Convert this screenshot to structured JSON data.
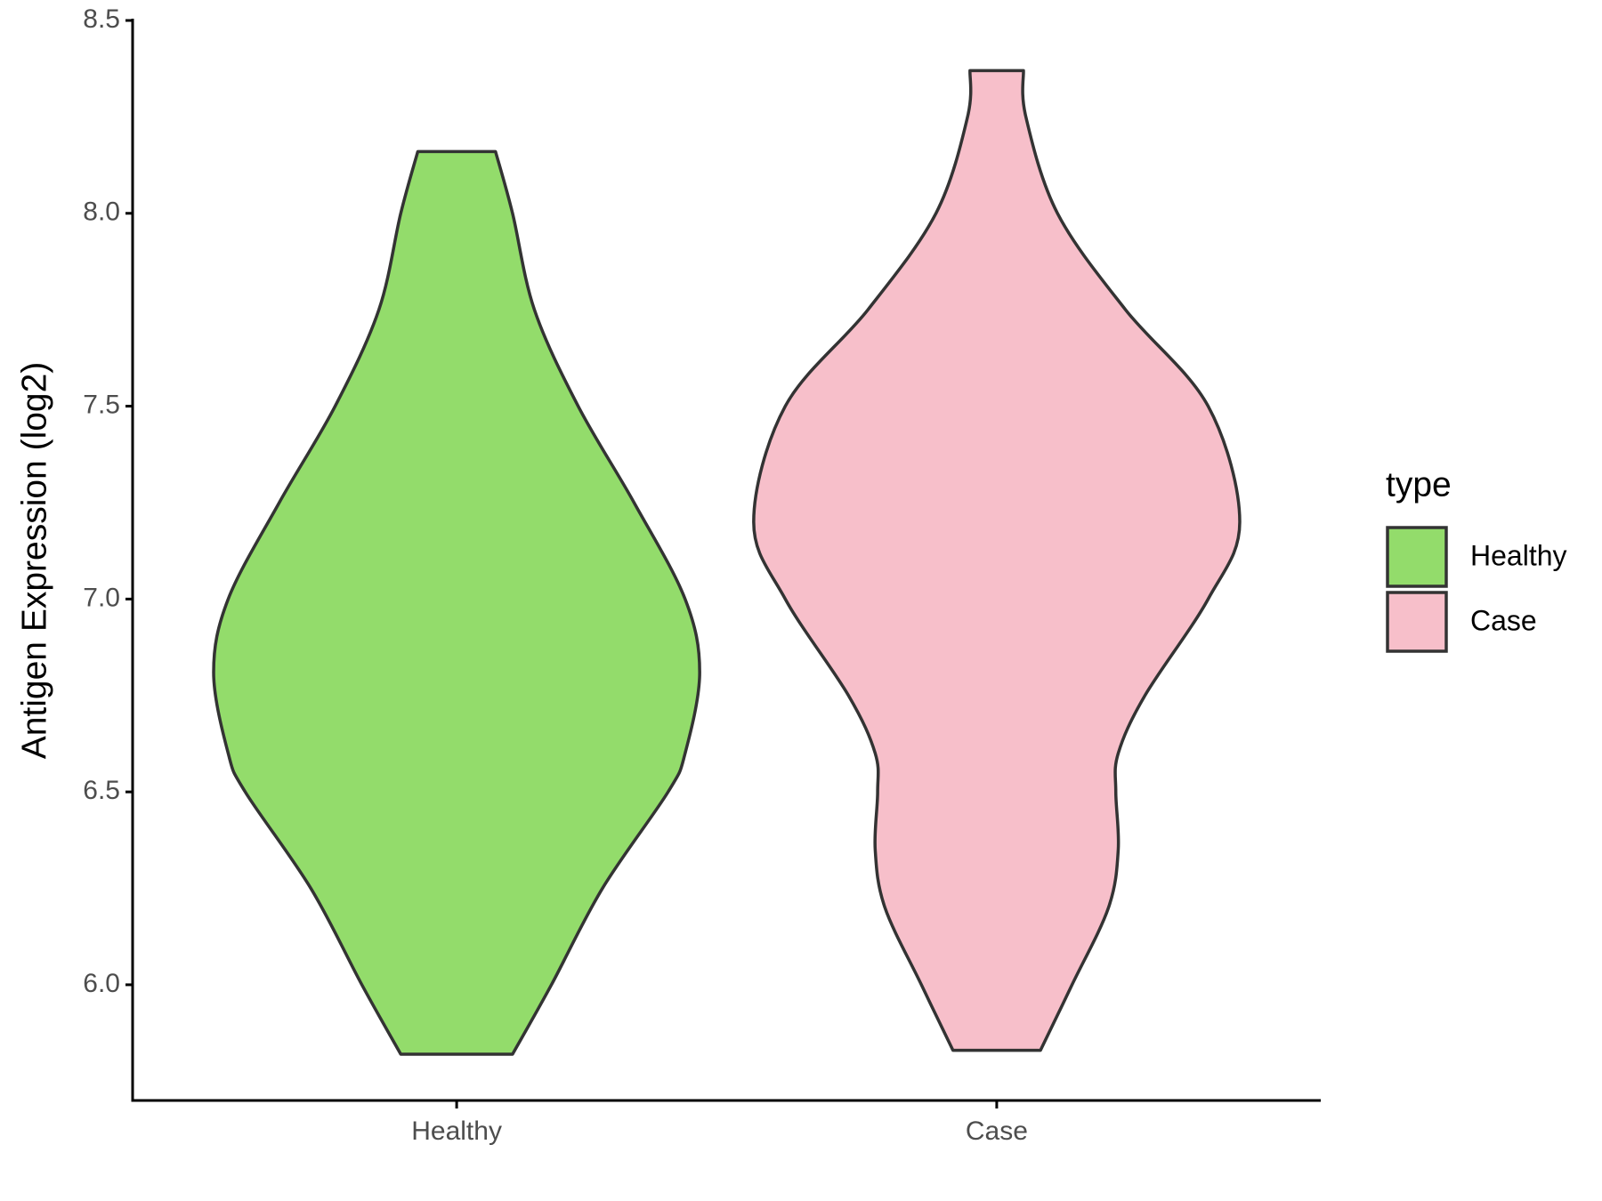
{
  "chart_data": {
    "type": "violin",
    "y_label": "Antigen Expression (log2)",
    "categories": [
      "Healthy",
      "Case"
    ],
    "legend_title": "type",
    "legend": "right",
    "ylim": [
      5.7,
      8.5
    ],
    "yticks": [
      {
        "value": 6,
        "label": "6.0"
      },
      6.5,
      {
        "value": 7,
        "label": "7.0"
      },
      7.5,
      {
        "value": 8,
        "label": "8.0"
      },
      8.5
    ],
    "series": [
      {
        "name": "Healthy",
        "color": "#93dc6b",
        "y": [
          5.82,
          6.0,
          6.25,
          6.5,
          6.6,
          6.81,
          7.0,
          7.25,
          7.5,
          7.75,
          8.0,
          8.16
        ],
        "density": [
          0.23,
          0.39,
          0.6,
          0.87,
          0.94,
          1.0,
          0.94,
          0.73,
          0.5,
          0.32,
          0.23,
          0.16
        ]
      },
      {
        "name": "Case",
        "color": "#f7bfca",
        "y": [
          5.83,
          6.0,
          6.2,
          6.35,
          6.5,
          6.6,
          6.75,
          7.0,
          7.2,
          7.5,
          7.75,
          8.0,
          8.25,
          8.37
        ],
        "density": [
          0.18,
          0.31,
          0.46,
          0.5,
          0.49,
          0.5,
          0.61,
          0.87,
          1.0,
          0.87,
          0.53,
          0.25,
          0.12,
          0.11
        ]
      }
    ]
  }
}
